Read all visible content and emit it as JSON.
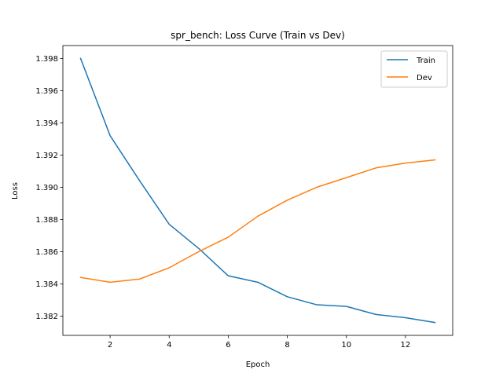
{
  "chart_data": {
    "type": "line",
    "title": "spr_bench: Loss Curve (Train vs Dev)",
    "xlabel": "Epoch",
    "ylabel": "Loss",
    "xlim": [
      0.4,
      13.6
    ],
    "ylim": [
      1.3808,
      1.3988
    ],
    "xticks": [
      2,
      4,
      6,
      8,
      10,
      12
    ],
    "yticks": [
      1.382,
      1.384,
      1.386,
      1.388,
      1.39,
      1.392,
      1.394,
      1.396,
      1.398
    ],
    "grid": false,
    "legend": "top-right",
    "x": [
      1,
      2,
      3,
      4,
      5,
      6,
      7,
      8,
      9,
      10,
      11,
      12,
      13
    ],
    "series": [
      {
        "name": "Train",
        "color": "#1f77b4",
        "values": [
          1.398,
          1.3932,
          1.3904,
          1.3877,
          1.3862,
          1.3845,
          1.3841,
          1.3832,
          1.3827,
          1.3826,
          1.3821,
          1.3819,
          1.3816
        ]
      },
      {
        "name": "Dev",
        "color": "#ff7f0e",
        "values": [
          1.3844,
          1.3841,
          1.3843,
          1.385,
          1.386,
          1.3869,
          1.3882,
          1.3892,
          1.39,
          1.3906,
          1.3912,
          1.3915,
          1.3917
        ]
      }
    ]
  }
}
